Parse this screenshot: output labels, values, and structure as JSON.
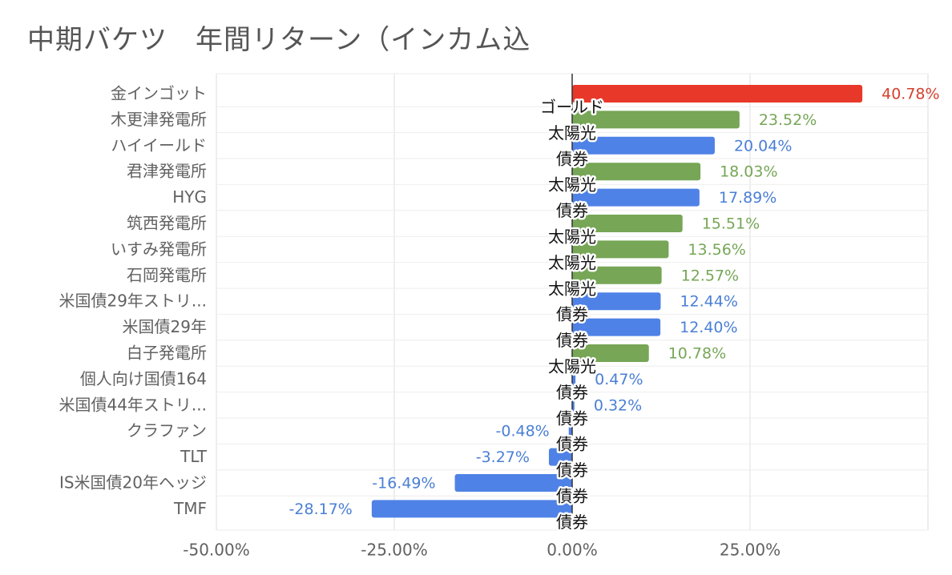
{
  "chart_data": {
    "type": "bar",
    "orientation": "horizontal",
    "title": "中期バケツ　年間リターン（インカム込",
    "categories": [
      "金インゴット",
      "木更津発電所",
      "ハイイールド",
      "君津発電所",
      "HYG",
      "筑西発電所",
      "いすみ発電所",
      "石岡発電所",
      "米国債29年ストリ...",
      "米国債29年",
      "白子発電所",
      "個人向け国債164",
      "米国債44年ストリ...",
      "クラファン",
      "TLT",
      "IS米国債20年ヘッジ",
      "TMF"
    ],
    "values": [
      40.78,
      23.52,
      20.04,
      18.03,
      17.89,
      15.51,
      13.56,
      12.57,
      12.44,
      12.4,
      10.78,
      0.47,
      0.32,
      -0.48,
      -3.27,
      -16.49,
      -28.17
    ],
    "value_labels": [
      "40.78%",
      "23.52%",
      "20.04%",
      "18.03%",
      "17.89%",
      "15.51%",
      "13.56%",
      "12.57%",
      "12.44%",
      "12.40%",
      "10.78%",
      "0.47%",
      "0.32%",
      "-0.48%",
      "-3.27%",
      "-16.49%",
      "-28.17%"
    ],
    "bucket_labels": [
      "ゴールド",
      "太陽光",
      "債券",
      "太陽光",
      "債券",
      "太陽光",
      "太陽光",
      "太陽光",
      "債券",
      "債券",
      "太陽光",
      "債券",
      "債券",
      "債券",
      "債券",
      "債券",
      "債券"
    ],
    "xlim": [
      -50,
      50
    ],
    "xticks": [
      -50,
      -25,
      0,
      25
    ],
    "xtick_labels": [
      "-50.00%",
      "-25.00%",
      "0.00%",
      "25.00%"
    ],
    "grid": true,
    "colors": {
      "ゴールド": "#e8382a",
      "太陽光": "#76a656",
      "債券": "#4f82e6"
    },
    "label_colors": {
      "ゴールド": "#d6402f",
      "太陽光": "#76a656",
      "債券": "#4a7fd6"
    },
    "gridline_color": "#dddddd",
    "axis_color": "#333333"
  }
}
